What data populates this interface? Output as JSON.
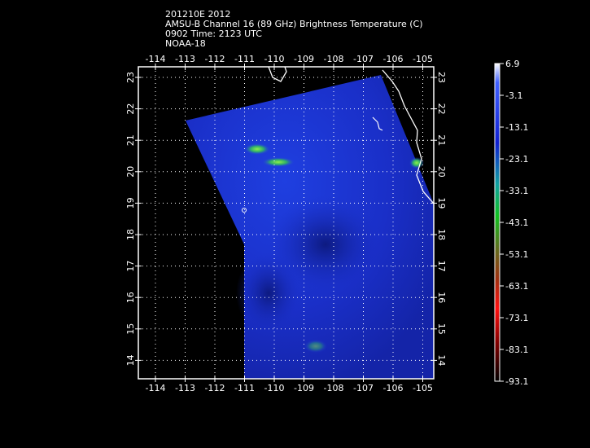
{
  "header": {
    "lines": [
      "201210E 2012",
      "AMSU-B Channel 16 (89 GHz) Brightness Temperature (C)",
      "0902 Time: 2123 UTC",
      "NOAA-18"
    ]
  },
  "map": {
    "lon_labels": [
      "-114",
      "-113",
      "-112",
      "-111",
      "-110",
      "-109",
      "-108",
      "-107",
      "-106",
      "-105"
    ],
    "lat_labels": [
      "23",
      "22",
      "21",
      "20",
      "19",
      "18",
      "17",
      "16",
      "15",
      "14"
    ]
  },
  "colorbar": {
    "labels": [
      "6.9",
      "-3.1",
      "-13.1",
      "-23.1",
      "-33.1",
      "-43.1",
      "-53.1",
      "-63.1",
      "-73.1",
      "-83.1",
      "-93.1"
    ]
  }
}
